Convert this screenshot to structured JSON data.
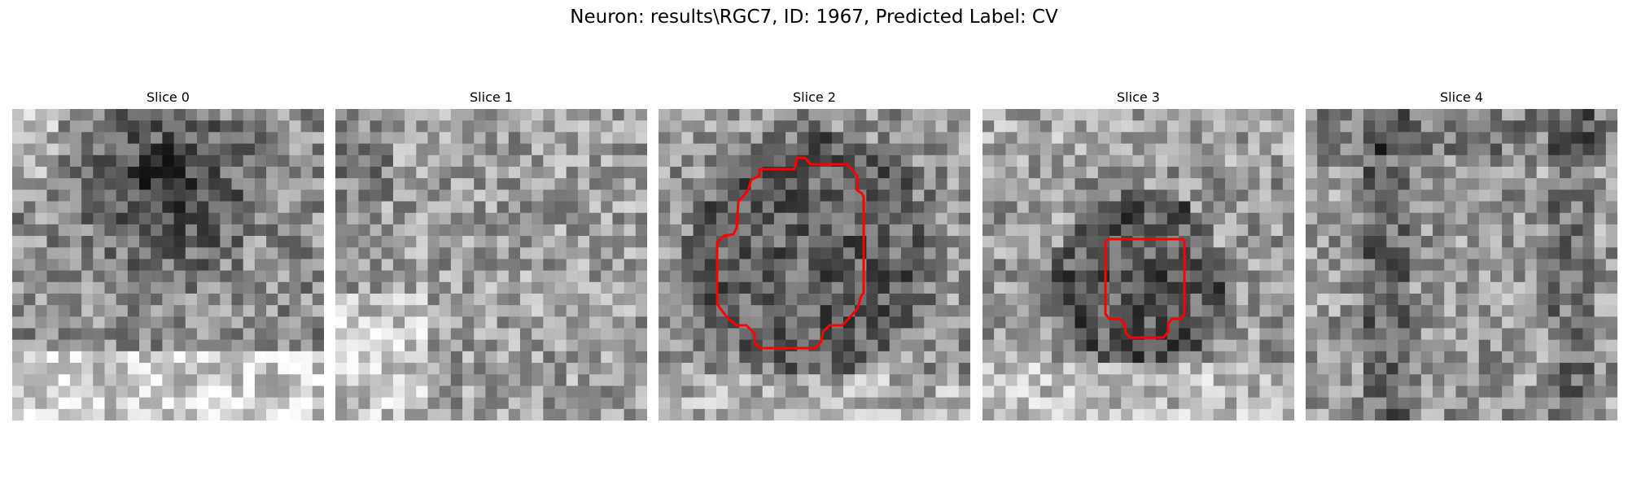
{
  "figure": {
    "title": "Neuron: results\\RGC7, ID: 1967, Predicted Label: CV"
  },
  "panels": [
    {
      "label": "Slice 0",
      "has_contour": false
    },
    {
      "label": "Slice 1",
      "has_contour": false
    },
    {
      "label": "Slice 2",
      "has_contour": true
    },
    {
      "label": "Slice 3",
      "has_contour": true
    },
    {
      "label": "Slice 4",
      "has_contour": false
    }
  ],
  "colors": {
    "contour": "#ff0000"
  }
}
